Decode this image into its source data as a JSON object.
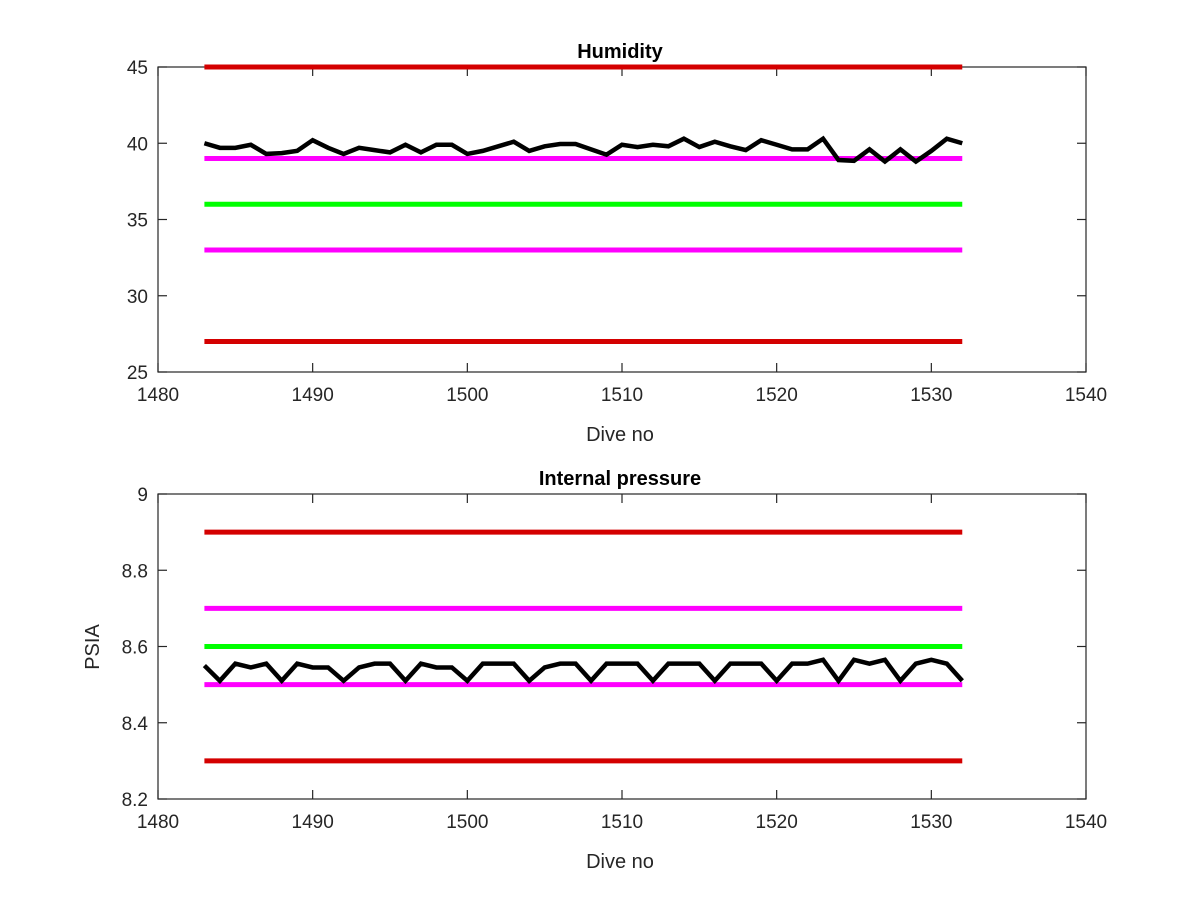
{
  "chart_data": [
    {
      "type": "line",
      "title": "Humidity",
      "xlabel": "Dive no",
      "ylabel": "",
      "xlim": [
        1480,
        1540
      ],
      "ylim": [
        25,
        45
      ],
      "xticks": [
        "1480",
        "1490",
        "1500",
        "1510",
        "1520",
        "1530",
        "1540"
      ],
      "yticks": [
        "25",
        "30",
        "35",
        "40",
        "45"
      ],
      "grid": false,
      "box": true,
      "reference_lines": [
        {
          "y": 45,
          "x_range": [
            1483,
            1532
          ],
          "color": "#d40000"
        },
        {
          "y": 39,
          "x_range": [
            1483,
            1532
          ],
          "color": "#ff00ff"
        },
        {
          "y": 36,
          "x_range": [
            1483,
            1532
          ],
          "color": "#00ff00"
        },
        {
          "y": 33,
          "x_range": [
            1483,
            1532
          ],
          "color": "#ff00ff"
        },
        {
          "y": 27,
          "x_range": [
            1483,
            1532
          ],
          "color": "#d40000"
        }
      ],
      "series": [
        {
          "color": "#000000",
          "x": [
            1483,
            1484,
            1485,
            1486,
            1487,
            1488,
            1489,
            1490,
            1491,
            1492,
            1493,
            1494,
            1495,
            1496,
            1497,
            1498,
            1499,
            1500,
            1501,
            1502,
            1503,
            1504,
            1505,
            1506,
            1507,
            1508,
            1509,
            1510,
            1511,
            1512,
            1513,
            1514,
            1515,
            1516,
            1517,
            1518,
            1519,
            1520,
            1521,
            1522,
            1523,
            1524,
            1525,
            1526,
            1527,
            1528,
            1529,
            1530,
            1531,
            1532
          ],
          "y": [
            40.0,
            39.7,
            39.7,
            39.9,
            39.3,
            39.35,
            39.5,
            40.2,
            39.7,
            39.3,
            39.7,
            39.55,
            39.4,
            39.9,
            39.4,
            39.9,
            39.9,
            39.3,
            39.5,
            39.8,
            40.1,
            39.5,
            39.8,
            39.95,
            39.95,
            39.6,
            39.25,
            39.9,
            39.75,
            39.9,
            39.8,
            40.3,
            39.75,
            40.1,
            39.8,
            39.55,
            40.2,
            39.9,
            39.6,
            39.6,
            40.3,
            38.9,
            38.85,
            39.6,
            38.8,
            39.6,
            38.8,
            39.5,
            40.3,
            40.0
          ]
        }
      ]
    },
    {
      "type": "line",
      "title": "Internal pressure",
      "xlabel": "Dive no",
      "ylabel": "PSIA",
      "xlim": [
        1480,
        1540
      ],
      "ylim": [
        8.2,
        9
      ],
      "xticks": [
        "1480",
        "1490",
        "1500",
        "1510",
        "1520",
        "1530",
        "1540"
      ],
      "yticks": [
        "8.2",
        "8.4",
        "8.6",
        "8.8",
        "9"
      ],
      "grid": false,
      "box": true,
      "reference_lines": [
        {
          "y": 8.9,
          "x_range": [
            1483,
            1532
          ],
          "color": "#d40000"
        },
        {
          "y": 8.7,
          "x_range": [
            1483,
            1532
          ],
          "color": "#ff00ff"
        },
        {
          "y": 8.6,
          "x_range": [
            1483,
            1532
          ],
          "color": "#00ff00"
        },
        {
          "y": 8.5,
          "x_range": [
            1483,
            1532
          ],
          "color": "#ff00ff"
        },
        {
          "y": 8.3,
          "x_range": [
            1483,
            1532
          ],
          "color": "#d40000"
        }
      ],
      "series": [
        {
          "color": "#000000",
          "x": [
            1483,
            1484,
            1485,
            1486,
            1487,
            1488,
            1489,
            1490,
            1491,
            1492,
            1493,
            1494,
            1495,
            1496,
            1497,
            1498,
            1499,
            1500,
            1501,
            1502,
            1503,
            1504,
            1505,
            1506,
            1507,
            1508,
            1509,
            1510,
            1511,
            1512,
            1513,
            1514,
            1515,
            1516,
            1517,
            1518,
            1519,
            1520,
            1521,
            1522,
            1523,
            1524,
            1525,
            1526,
            1527,
            1528,
            1529,
            1530,
            1531,
            1532
          ],
          "y": [
            8.55,
            8.51,
            8.555,
            8.545,
            8.555,
            8.51,
            8.555,
            8.545,
            8.545,
            8.51,
            8.545,
            8.555,
            8.555,
            8.51,
            8.555,
            8.545,
            8.545,
            8.51,
            8.555,
            8.555,
            8.555,
            8.51,
            8.545,
            8.555,
            8.555,
            8.51,
            8.555,
            8.555,
            8.555,
            8.51,
            8.555,
            8.555,
            8.555,
            8.51,
            8.555,
            8.555,
            8.555,
            8.51,
            8.555,
            8.555,
            8.565,
            8.51,
            8.565,
            8.555,
            8.565,
            8.51,
            8.555,
            8.565,
            8.555,
            8.51
          ]
        }
      ]
    }
  ]
}
